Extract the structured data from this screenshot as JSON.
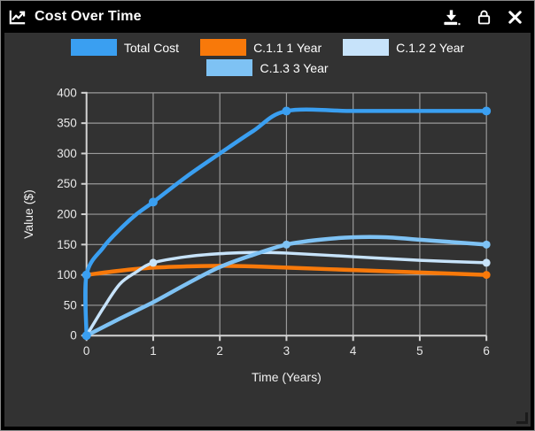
{
  "titlebar": {
    "title": "Cost Over Time",
    "icons": [
      "chart-line",
      "download",
      "lock",
      "close"
    ]
  },
  "colors": {
    "window_frame": "#000000",
    "panel_bg": "#323232",
    "grid": "#9a9a9a",
    "axis": "#d4d4d4",
    "text": "#e8e8e8",
    "total_cost": "#3a9ff1",
    "c11": "#f8790a",
    "c12": "#c7e3fa",
    "c13": "#7ec2f4"
  },
  "chart_data": {
    "type": "line",
    "title": "Cost Over Time",
    "xlabel": "Time (Years)",
    "ylabel": "Value ($)",
    "xlim": [
      0,
      6
    ],
    "ylim": [
      0,
      400
    ],
    "x_ticks": [
      0,
      1,
      2,
      3,
      4,
      5,
      6
    ],
    "y_ticks": [
      0,
      50,
      100,
      150,
      200,
      250,
      300,
      350,
      400
    ],
    "grid": true,
    "legend_position": "top",
    "legend_rows": [
      [
        0,
        1,
        2
      ],
      [
        3
      ]
    ],
    "series": [
      {
        "name": "Total Cost",
        "color": "#3a9ff1",
        "width": 4.5,
        "marker_radius": 5,
        "points": [
          [
            0,
            0
          ],
          [
            0,
            100
          ],
          [
            0.25,
            145
          ],
          [
            0.5,
            175
          ],
          [
            0.75,
            200
          ],
          [
            1,
            220
          ],
          [
            1.5,
            262
          ],
          [
            2,
            300
          ],
          [
            2.5,
            337
          ],
          [
            3,
            370
          ],
          [
            4,
            370
          ],
          [
            5,
            370
          ],
          [
            6,
            370
          ]
        ],
        "markers": [
          [
            0,
            0
          ],
          [
            0,
            100
          ],
          [
            1,
            220
          ],
          [
            3,
            370
          ],
          [
            6,
            370
          ]
        ]
      },
      {
        "name": "C.1.1 1 Year",
        "color": "#f8790a",
        "width": 4.5,
        "marker_radius": 4.5,
        "points": [
          [
            0,
            100
          ],
          [
            0.5,
            107
          ],
          [
            1,
            112
          ],
          [
            1.5,
            114
          ],
          [
            2,
            115
          ],
          [
            2.5,
            114
          ],
          [
            3,
            112
          ],
          [
            4,
            108
          ],
          [
            5,
            104
          ],
          [
            6,
            100
          ]
        ],
        "markers": [
          [
            6,
            100
          ]
        ]
      },
      {
        "name": "C.1.2 2 Year",
        "color": "#c7e3fa",
        "width": 3.5,
        "marker_radius": 4.5,
        "points": [
          [
            0,
            0
          ],
          [
            0.25,
            45
          ],
          [
            0.5,
            85
          ],
          [
            0.75,
            105
          ],
          [
            1,
            120
          ],
          [
            1.5,
            130
          ],
          [
            2,
            135
          ],
          [
            2.5,
            137
          ],
          [
            3,
            136
          ],
          [
            4,
            130
          ],
          [
            5,
            124
          ],
          [
            6,
            120
          ]
        ],
        "markers": [
          [
            1,
            120
          ],
          [
            6,
            120
          ]
        ]
      },
      {
        "name": "C.1.3 3 Year",
        "color": "#7ec2f4",
        "width": 4.5,
        "marker_radius": 4.5,
        "points": [
          [
            0,
            0
          ],
          [
            0.5,
            28
          ],
          [
            1,
            55
          ],
          [
            1.5,
            85
          ],
          [
            2,
            113
          ],
          [
            2.5,
            133
          ],
          [
            3,
            150
          ],
          [
            3.5,
            158
          ],
          [
            4,
            162
          ],
          [
            4.5,
            162
          ],
          [
            5,
            158
          ],
          [
            5.5,
            154
          ],
          [
            6,
            150
          ]
        ],
        "markers": [
          [
            3,
            150
          ],
          [
            6,
            150
          ]
        ]
      }
    ]
  }
}
